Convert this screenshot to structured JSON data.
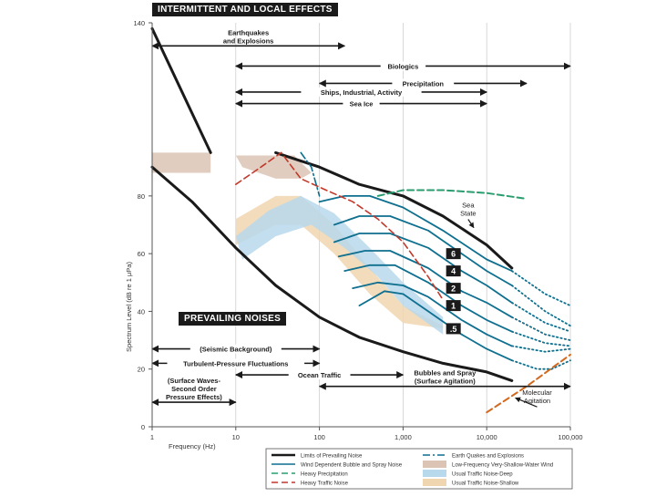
{
  "chart_data": {
    "type": "line",
    "xlabel": "Frequency (Hz)",
    "ylabel": "Spectrum Level (dB re 1 μPa)",
    "x_scale": "log",
    "xlim": [
      1,
      100000
    ],
    "ylim": [
      0,
      140
    ],
    "x_ticks": [
      {
        "value": 1,
        "label": "1"
      },
      {
        "value": 10,
        "label": "10"
      },
      {
        "value": 100,
        "label": "100"
      },
      {
        "value": 1000,
        "label": "1,000"
      },
      {
        "value": 10000,
        "label": "10,000"
      },
      {
        "value": 100000,
        "label": "100,000"
      }
    ],
    "y_ticks": [
      0,
      20,
      40,
      60,
      80,
      140
    ],
    "sections": {
      "intermittent": "INTERMITTENT AND LOCAL EFFECTS",
      "prevailing": "PREVAILING NOISES"
    },
    "ranges": [
      {
        "label": "Earthquakes and Explosions",
        "lines": [
          "Earthquakes",
          "and Explosions"
        ],
        "x1": 1,
        "x2": 200,
        "y": 132,
        "label_above": true
      },
      {
        "label": "Biologics",
        "lines": [
          "Biologics"
        ],
        "x1": 10,
        "x2": 100000,
        "y": 125
      },
      {
        "label": "Precipitation",
        "lines": [
          "Precipitation"
        ],
        "x1": 100,
        "x2": 30000,
        "y": 119
      },
      {
        "label": "Ships, Industrial, Activity",
        "lines": [
          "Ships, Industrial, Activity"
        ],
        "x1": 10,
        "x2": 10000,
        "y": 116
      },
      {
        "label": "Sea Ice",
        "lines": [
          "Sea Ice"
        ],
        "x1": 10,
        "x2": 10000,
        "y": 112
      },
      {
        "label": "(Seismic Background)",
        "lines": [
          "(Seismic Background)"
        ],
        "x1": 1,
        "x2": 100,
        "y": 27
      },
      {
        "label": "Turbulent-Pressure Fluctuations",
        "lines": [
          "Turbulent-Pressure Fluctuations"
        ],
        "x1": 1,
        "x2": 100,
        "y": 22
      },
      {
        "label": "Ocean Traffic",
        "lines": [
          "Ocean Traffic"
        ],
        "x1": 10,
        "x2": 1000,
        "y": 18
      },
      {
        "label": "Bubbles and Spray (Surface Agitation)",
        "lines": [
          "Bubbles and Spray",
          "(Surface Agitation)"
        ],
        "x1": 100,
        "x2": 100000,
        "y": 14,
        "label_above": true
      },
      {
        "label": "(Surface Waves-Second Order Pressure Effects)",
        "lines": [
          "(Surface Waves-",
          "Second Order",
          "Pressure Effects)"
        ],
        "x1": 1,
        "x2": 10,
        "y": 8.5,
        "label_above": true
      }
    ],
    "bands": [
      {
        "name": "Low-Frequency Very-Shallow-Water Wind",
        "color": "#dcc4b4",
        "upper": [
          [
            1,
            95
          ],
          [
            5,
            95
          ]
        ],
        "lower": [
          [
            1,
            88
          ],
          [
            5,
            88
          ]
        ]
      },
      {
        "name": "Low-Frequency Very-Shallow-Water Wind",
        "color": "#dcc4b4",
        "upper": [
          [
            10,
            94
          ],
          [
            50,
            94
          ],
          [
            80,
            88
          ]
        ],
        "lower": [
          [
            12,
            90
          ],
          [
            30,
            86
          ],
          [
            60,
            86
          ],
          [
            80,
            88
          ]
        ]
      },
      {
        "name": "Usual Traffic Noise-Shallow",
        "color": "#f0d6b0",
        "upper": [
          [
            10,
            72
          ],
          [
            30,
            80
          ],
          [
            60,
            80
          ],
          [
            150,
            70
          ],
          [
            400,
            55
          ],
          [
            1000,
            42
          ],
          [
            3000,
            35
          ]
        ],
        "lower": [
          [
            10,
            63
          ],
          [
            30,
            70
          ],
          [
            60,
            70
          ],
          [
            150,
            60
          ],
          [
            400,
            46
          ],
          [
            1000,
            36
          ],
          [
            3000,
            34
          ]
        ]
      },
      {
        "name": "Usual Traffic Noise-Deep",
        "color": "#b8d8ec",
        "upper": [
          [
            10,
            66
          ],
          [
            25,
            75
          ],
          [
            60,
            80
          ],
          [
            150,
            74
          ],
          [
            400,
            62
          ],
          [
            1000,
            50
          ],
          [
            3000,
            38
          ]
        ],
        "lower": [
          [
            12,
            58
          ],
          [
            30,
            66
          ],
          [
            80,
            70
          ],
          [
            200,
            62
          ],
          [
            500,
            52
          ],
          [
            1000,
            42
          ],
          [
            3000,
            32
          ]
        ]
      }
    ],
    "series": [
      {
        "name": "Limits of Prevailing Noise",
        "style": "solid",
        "color": "#1a1a1a",
        "width": 3,
        "points": [
          [
            1,
            138
          ],
          [
            5,
            95
          ]
        ]
      },
      {
        "name": "Limits of Prevailing Noise",
        "style": "solid",
        "color": "#1a1a1a",
        "width": 3,
        "points": [
          [
            30,
            95
          ],
          [
            100,
            90
          ],
          [
            300,
            84
          ],
          [
            1000,
            80
          ],
          [
            3000,
            73
          ],
          [
            10000,
            63
          ],
          [
            20000,
            55
          ]
        ]
      },
      {
        "name": "Limits of Prevailing Noise",
        "style": "solid",
        "color": "#1a1a1a",
        "width": 3,
        "points": [
          [
            1,
            90
          ],
          [
            3,
            78
          ],
          [
            10,
            62
          ],
          [
            30,
            49
          ],
          [
            100,
            38
          ],
          [
            300,
            31
          ],
          [
            1000,
            26
          ],
          [
            3000,
            22
          ],
          [
            10000,
            19
          ],
          [
            20000,
            16
          ]
        ]
      },
      {
        "name": "Wind Dependent Bubble and Spray Noise",
        "style": "solid",
        "color": "#0e6f8f",
        "width": 1.8,
        "points": [
          [
            100,
            78
          ],
          [
            200,
            80
          ],
          [
            400,
            80
          ],
          [
            1000,
            76
          ],
          [
            3000,
            68
          ],
          [
            10000,
            58
          ],
          [
            20000,
            54
          ]
        ]
      },
      {
        "name": "Wind Dependent Bubble and Spray Noise",
        "style": "dotted",
        "color": "#0e6f8f",
        "width": 1.8,
        "points": [
          [
            20000,
            54
          ],
          [
            50000,
            46
          ],
          [
            100000,
            42
          ]
        ]
      },
      {
        "name": "Wind Dependent Bubble and Spray Noise",
        "style": "solid",
        "color": "#0e6f8f",
        "width": 1.8,
        "points": [
          [
            150,
            70
          ],
          [
            300,
            73
          ],
          [
            700,
            73
          ],
          [
            2000,
            68
          ],
          [
            5000,
            60
          ],
          [
            10000,
            54
          ],
          [
            20000,
            49
          ]
        ]
      },
      {
        "name": "Wind Dependent Bubble and Spray Noise",
        "style": "dotted",
        "color": "#0e6f8f",
        "width": 1.8,
        "points": [
          [
            20000,
            49
          ],
          [
            50000,
            40
          ],
          [
            100000,
            35
          ]
        ]
      },
      {
        "name": "Wind Dependent Bubble and Spray Noise",
        "style": "solid",
        "color": "#0e6f8f",
        "width": 1.8,
        "points": [
          [
            150,
            64
          ],
          [
            300,
            67
          ],
          [
            700,
            67
          ],
          [
            2000,
            62
          ],
          [
            5000,
            54
          ],
          [
            10000,
            49
          ],
          [
            20000,
            43
          ]
        ]
      },
      {
        "name": "Wind Dependent Bubble and Spray Noise",
        "style": "dotted",
        "color": "#0e6f8f",
        "width": 1.8,
        "points": [
          [
            20000,
            43
          ],
          [
            50000,
            36
          ],
          [
            100000,
            33
          ]
        ]
      },
      {
        "name": "Wind Dependent Bubble and Spray Noise",
        "style": "solid",
        "color": "#0e6f8f",
        "width": 1.8,
        "points": [
          [
            170,
            59
          ],
          [
            350,
            61
          ],
          [
            700,
            61
          ],
          [
            2000,
            55
          ],
          [
            5000,
            47
          ],
          [
            10000,
            43
          ],
          [
            20000,
            38
          ]
        ]
      },
      {
        "name": "Wind Dependent Bubble and Spray Noise",
        "style": "dotted",
        "color": "#0e6f8f",
        "width": 1.8,
        "points": [
          [
            20000,
            38
          ],
          [
            50000,
            32
          ],
          [
            100000,
            30
          ]
        ]
      },
      {
        "name": "Wind Dependent Bubble and Spray Noise",
        "style": "solid",
        "color": "#0e6f8f",
        "width": 1.8,
        "points": [
          [
            200,
            54
          ],
          [
            400,
            56
          ],
          [
            800,
            56
          ],
          [
            2000,
            50
          ],
          [
            5000,
            42
          ],
          [
            10000,
            37
          ],
          [
            20000,
            33
          ]
        ]
      },
      {
        "name": "Wind Dependent Bubble and Spray Noise",
        "style": "dotted",
        "color": "#0e6f8f",
        "width": 1.8,
        "points": [
          [
            20000,
            33
          ],
          [
            50000,
            29
          ],
          [
            100000,
            28
          ]
        ]
      },
      {
        "name": "Wind Dependent Bubble and Spray Noise",
        "style": "solid",
        "color": "#0e6f8f",
        "width": 1.8,
        "points": [
          [
            250,
            48
          ],
          [
            500,
            50
          ],
          [
            1000,
            49
          ],
          [
            2000,
            45
          ],
          [
            5000,
            37
          ],
          [
            10000,
            32
          ],
          [
            20000,
            28
          ]
        ]
      },
      {
        "name": "Wind Dependent Bubble and Spray Noise",
        "style": "dotted",
        "color": "#0e6f8f",
        "width": 1.8,
        "points": [
          [
            20000,
            28
          ],
          [
            50000,
            26
          ],
          [
            100000,
            27
          ]
        ]
      },
      {
        "name": "Wind Dependent Bubble and Spray Noise",
        "style": "solid",
        "color": "#0e6f8f",
        "width": 1.8,
        "points": [
          [
            300,
            42
          ],
          [
            600,
            47
          ],
          [
            1000,
            46
          ],
          [
            2000,
            40
          ],
          [
            5000,
            32
          ],
          [
            10000,
            27
          ],
          [
            20000,
            23
          ]
        ]
      },
      {
        "name": "Wind Dependent Bubble and Spray Noise",
        "style": "dotted",
        "color": "#0e6f8f",
        "width": 1.8,
        "points": [
          [
            20000,
            23
          ],
          [
            40000,
            20
          ],
          [
            60000,
            20
          ],
          [
            100000,
            23
          ]
        ]
      },
      {
        "name": "Heavy Precipitation",
        "style": "dashed",
        "color": "#2a9d6e",
        "width": 2,
        "points": [
          [
            500,
            80
          ],
          [
            1000,
            82
          ],
          [
            3000,
            82
          ],
          [
            10000,
            81
          ],
          [
            30000,
            79
          ]
        ]
      },
      {
        "name": "Heavy Traffic Noise",
        "style": "dashed",
        "color": "#c0392b",
        "width": 1.6,
        "points": [
          [
            10,
            84
          ],
          [
            20,
            90
          ],
          [
            35,
            95
          ],
          [
            60,
            86
          ],
          [
            120,
            82
          ],
          [
            250,
            78
          ],
          [
            500,
            72
          ],
          [
            1000,
            64
          ],
          [
            2000,
            52
          ],
          [
            3000,
            44
          ]
        ]
      },
      {
        "name": "Earth Quakes and Explosions",
        "style": "dashdot",
        "color": "#0e6f8f",
        "width": 1.6,
        "points": [
          [
            60,
            95
          ],
          [
            80,
            90
          ],
          [
            100,
            80
          ]
        ]
      },
      {
        "name": "Molecular Agitation",
        "style": "dashed",
        "color": "#d2691e",
        "width": 2,
        "points": [
          [
            10000,
            5
          ],
          [
            30000,
            14
          ],
          [
            100000,
            25
          ]
        ]
      }
    ],
    "wind_labels": [
      {
        "label": "6",
        "x": 4000,
        "y": 60
      },
      {
        "label": "4",
        "x": 4000,
        "y": 54
      },
      {
        "label": "2",
        "x": 4000,
        "y": 48
      },
      {
        "label": "1",
        "x": 4000,
        "y": 42
      },
      {
        "label": ".5",
        "x": 4000,
        "y": 34
      }
    ],
    "annotations": [
      {
        "label": "Sea State",
        "lines": [
          "Sea",
          "State"
        ],
        "x": 6000,
        "y": 76,
        "arrow_to": [
          7000,
          69
        ]
      },
      {
        "label": "Molecular Agitation",
        "lines": [
          "Molecular",
          "Agitation"
        ],
        "x": 40000,
        "y": 11,
        "arrow_to": [
          22000,
          10
        ]
      }
    ],
    "legend": {
      "placement": "bottom",
      "items": [
        {
          "label": "Limits of Prevailing Noise",
          "kind": "line",
          "style": "solid",
          "color": "#1a1a1a"
        },
        {
          "label": "Earth Quakes and Explosions",
          "kind": "line",
          "style": "dashdot",
          "color": "#0e6f8f"
        },
        {
          "label": "Wind Dependent Bubble and Spray Noise",
          "kind": "line",
          "style": "solid",
          "color": "#0e6f8f"
        },
        {
          "label": "Low-Frequency Very-Shallow-Water Wind",
          "kind": "swatch",
          "color": "#dcc4b4"
        },
        {
          "label": "Heavy Precipitation",
          "kind": "line",
          "style": "dashed",
          "color": "#2a9d6e"
        },
        {
          "label": "Usual Traffic Noise-Deep",
          "kind": "swatch",
          "color": "#b8d8ec"
        },
        {
          "label": "Heavy Traffic Noise",
          "kind": "line",
          "style": "dashed",
          "color": "#c0392b"
        },
        {
          "label": "Usual Traffic Noise-Shallow",
          "kind": "swatch",
          "color": "#f0d6b0"
        }
      ]
    },
    "grid": true
  }
}
